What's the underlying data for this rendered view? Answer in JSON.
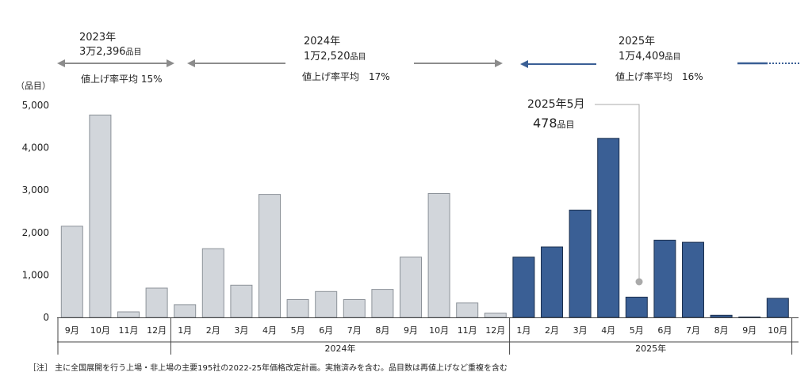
{
  "colors": {
    "past_bar_fill": "#d2d6db",
    "past_bar_stroke": "#8c9299",
    "current_bar_fill": "#3a5f95",
    "current_bar_stroke": "#1b2f4e",
    "arrow_gray": "#8c8c8c",
    "arrow_blue": "#3a5f95",
    "text": "#222222"
  },
  "annotations": {
    "y_unit": "（品目）",
    "note": "［注］ 主に全国展開を行う上場・非上場の主要195社の2022-25年価格改定計画。実施済みを含む。品目数は再値上げなど重複を含む",
    "callout_period": "2025年5月",
    "callout_value": "478",
    "callout_unit": "品目",
    "periods": [
      {
        "year": "2023年",
        "count": "3万2,396",
        "unit": "品目",
        "rate": "値上げ率平均 15%"
      },
      {
        "year": "2024年",
        "count": "1万2,520",
        "unit": "品目",
        "rate": "値上げ率平均　17%"
      },
      {
        "year": "2025年",
        "count": "1万4,409",
        "unit": "品目",
        "rate": "値上げ率平均　16%"
      }
    ]
  },
  "chart_data": {
    "type": "bar",
    "title": "",
    "xlabel": "",
    "ylabel": "（品目）",
    "ylim": [
      0,
      5000
    ],
    "yticks": [
      "0",
      "1,000",
      "2,000",
      "3,000",
      "4,000",
      "5,000"
    ],
    "categories": [
      "9月",
      "10月",
      "11月",
      "12月",
      "1月",
      "2月",
      "3月",
      "4月",
      "5月",
      "6月",
      "7月",
      "8月",
      "9月",
      "10月",
      "11月",
      "12月",
      "1月",
      "2月",
      "3月",
      "4月",
      "5月",
      "6月",
      "7月",
      "8月",
      "9月",
      "10月"
    ],
    "years": [
      "2024年",
      "2025年"
    ],
    "series": [
      {
        "values": [
          2150,
          4770,
          130,
          690,
          300,
          1620,
          760,
          2900,
          420,
          610,
          420,
          660,
          1420,
          2920,
          340,
          100,
          1420,
          1660,
          2530,
          4220,
          478,
          1820,
          1770,
          50,
          10,
          450
        ]
      }
    ]
  }
}
